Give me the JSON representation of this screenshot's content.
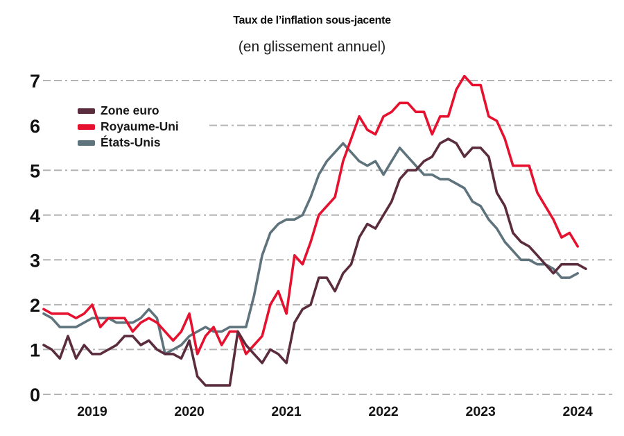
{
  "title": "Taux de l’inflation sous-jacente",
  "subtitle": "(en glissement annuel)",
  "colors": {
    "zone_euro": "#5a2c3d",
    "royaume_uni": "#e5112e",
    "etats_unis": "#5f737d",
    "gridline": "#b4b4b4",
    "text": "#121212",
    "background": "#ffffff"
  },
  "chart_data": {
    "type": "line",
    "title": "Taux de l’inflation sous-jacente",
    "subtitle": "(en glissement annuel)",
    "x_start": "2019-01",
    "x_frequency": "monthly",
    "x_tick_labels": [
      "2019",
      "2020",
      "2021",
      "2022",
      "2023",
      "2024"
    ],
    "x_tick_month_indices": [
      6,
      18,
      30,
      42,
      54,
      66
    ],
    "y_ticks": [
      0,
      1,
      2,
      3,
      4,
      5,
      6,
      7
    ],
    "ylim": [
      0,
      7
    ],
    "grid": "horizontal-dashed",
    "legend_position": "top-left",
    "series": [
      {
        "name": "Zone euro",
        "color": "#5a2c3d",
        "values": [
          1.1,
          1.0,
          0.8,
          1.3,
          0.8,
          1.1,
          0.9,
          0.9,
          1.0,
          1.1,
          1.3,
          1.3,
          1.1,
          1.2,
          1.0,
          0.9,
          0.9,
          0.8,
          1.2,
          0.4,
          0.2,
          0.2,
          0.2,
          0.2,
          1.4,
          1.1,
          0.9,
          0.7,
          1.0,
          0.9,
          0.7,
          1.6,
          1.9,
          2.0,
          2.6,
          2.6,
          2.3,
          2.7,
          2.9,
          3.5,
          3.8,
          3.7,
          4.0,
          4.3,
          4.8,
          5.0,
          5.0,
          5.2,
          5.3,
          5.6,
          5.7,
          5.6,
          5.3,
          5.5,
          5.5,
          5.3,
          4.5,
          4.2,
          3.6,
          3.4,
          3.3,
          3.1,
          2.9,
          2.7,
          2.9,
          2.9,
          2.9,
          2.8
        ]
      },
      {
        "name": "Royaume-Uni",
        "color": "#e5112e",
        "values": [
          1.9,
          1.8,
          1.8,
          1.8,
          1.7,
          1.8,
          2.0,
          1.5,
          1.7,
          1.7,
          1.7,
          1.4,
          1.6,
          1.7,
          1.6,
          1.4,
          1.2,
          1.4,
          1.8,
          0.9,
          1.3,
          1.5,
          1.1,
          1.4,
          1.4,
          0.9,
          1.1,
          1.3,
          2.0,
          2.3,
          1.8,
          3.1,
          2.9,
          3.4,
          4.0,
          4.2,
          4.4,
          5.2,
          5.7,
          6.2,
          5.9,
          5.8,
          6.2,
          6.3,
          6.5,
          6.5,
          6.3,
          6.3,
          5.8,
          6.2,
          6.2,
          6.8,
          7.1,
          6.9,
          6.9,
          6.2,
          6.1,
          5.7,
          5.1,
          5.1,
          5.1,
          4.5,
          4.2,
          3.9,
          3.5,
          3.6,
          3.3
        ]
      },
      {
        "name": "États-Unis",
        "color": "#5f737d",
        "values": [
          1.8,
          1.7,
          1.5,
          1.5,
          1.5,
          1.6,
          1.7,
          1.7,
          1.7,
          1.6,
          1.6,
          1.6,
          1.7,
          1.9,
          1.7,
          0.9,
          1.0,
          1.1,
          1.3,
          1.4,
          1.5,
          1.4,
          1.4,
          1.5,
          1.5,
          1.5,
          2.2,
          3.1,
          3.6,
          3.8,
          3.9,
          3.9,
          4.0,
          4.4,
          4.9,
          5.2,
          5.4,
          5.6,
          5.4,
          5.2,
          5.1,
          5.2,
          4.9,
          5.2,
          5.5,
          5.3,
          5.1,
          4.9,
          4.9,
          4.8,
          4.8,
          4.7,
          4.6,
          4.3,
          4.2,
          3.9,
          3.7,
          3.4,
          3.2,
          3.0,
          3.0,
          2.9,
          2.9,
          2.8,
          2.6,
          2.6,
          2.7
        ]
      }
    ]
  }
}
